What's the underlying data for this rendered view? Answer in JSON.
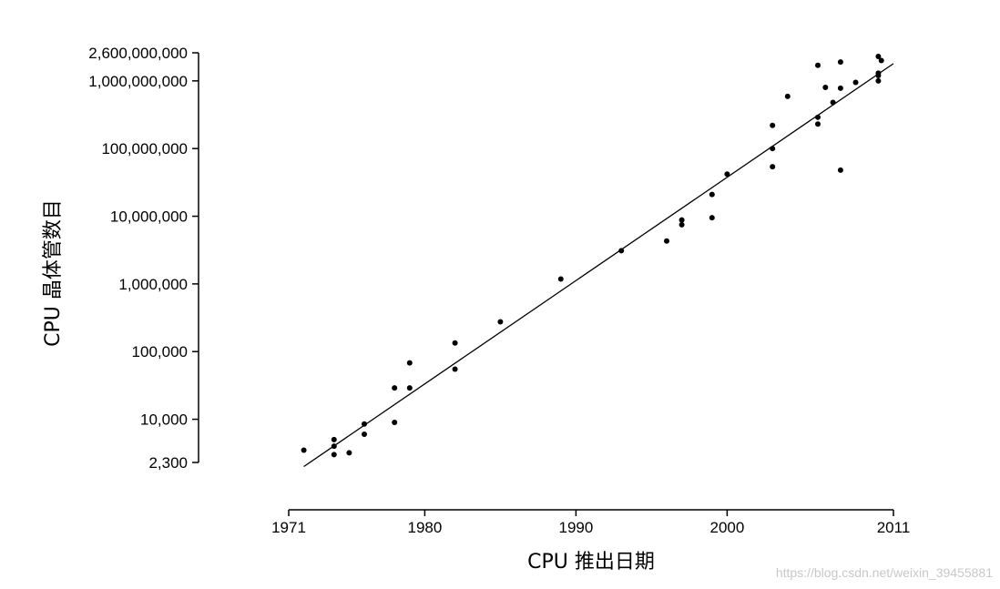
{
  "chart_data": {
    "type": "scatter",
    "xlabel": "CPU 推出日期",
    "ylabel": "CPU 晶体管数目",
    "xscale": "linear",
    "yscale": "log",
    "xlim": [
      1971,
      2011
    ],
    "ylim": [
      2300,
      2600000000
    ],
    "x_ticks": [
      1971,
      1980,
      1990,
      2000,
      2011
    ],
    "x_tick_labels": [
      "1971",
      "1980",
      "1990",
      "2000",
      "2011"
    ],
    "y_ticks": [
      2300,
      10000,
      100000,
      1000000,
      10000000,
      100000000,
      1000000000,
      2600000000
    ],
    "y_tick_labels": [
      "2,300",
      "10,000",
      "100,000",
      "1,000,000",
      "10,000,000",
      "100,000,000",
      "1,000,000,000",
      "2,600,000,000"
    ],
    "grid": false,
    "legend": "none",
    "points": [
      {
        "x": 1972.0,
        "y": 3500
      },
      {
        "x": 1974.0,
        "y": 5000
      },
      {
        "x": 1974.0,
        "y": 4000
      },
      {
        "x": 1974.0,
        "y": 3000
      },
      {
        "x": 1975.0,
        "y": 3200
      },
      {
        "x": 1976.0,
        "y": 8500
      },
      {
        "x": 1976.0,
        "y": 6000
      },
      {
        "x": 1978.0,
        "y": 9000
      },
      {
        "x": 1978.0,
        "y": 29000
      },
      {
        "x": 1979.0,
        "y": 68000
      },
      {
        "x": 1979.0,
        "y": 29000
      },
      {
        "x": 1982.0,
        "y": 134000
      },
      {
        "x": 1982.0,
        "y": 55000
      },
      {
        "x": 1985.0,
        "y": 275000
      },
      {
        "x": 1989.0,
        "y": 1180000
      },
      {
        "x": 1993.0,
        "y": 3100000
      },
      {
        "x": 1996.0,
        "y": 4300000
      },
      {
        "x": 1997.0,
        "y": 7500000
      },
      {
        "x": 1997.0,
        "y": 8800000
      },
      {
        "x": 1999.0,
        "y": 21000000
      },
      {
        "x": 1999.0,
        "y": 9500000
      },
      {
        "x": 2000.0,
        "y": 42000000
      },
      {
        "x": 2003.0,
        "y": 54000000
      },
      {
        "x": 2003.0,
        "y": 100000000
      },
      {
        "x": 2003.0,
        "y": 220000000
      },
      {
        "x": 2004.0,
        "y": 590000000
      },
      {
        "x": 2006.0,
        "y": 230000000
      },
      {
        "x": 2006.0,
        "y": 290000000
      },
      {
        "x": 2006.0,
        "y": 1700000000
      },
      {
        "x": 2006.5,
        "y": 800000000
      },
      {
        "x": 2007.0,
        "y": 480000000
      },
      {
        "x": 2007.5,
        "y": 1900000000
      },
      {
        "x": 2007.5,
        "y": 780000000
      },
      {
        "x": 2007.5,
        "y": 48000000
      },
      {
        "x": 2008.5,
        "y": 950000000
      },
      {
        "x": 2010.0,
        "y": 2300000000
      },
      {
        "x": 2010.0,
        "y": 1300000000
      },
      {
        "x": 2010.0,
        "y": 1200000000
      },
      {
        "x": 2010.0,
        "y": 1000000000
      },
      {
        "x": 2010.2,
        "y": 2000000000
      }
    ],
    "trendline": {
      "x": [
        1972.0,
        2011.0
      ],
      "y": [
        2000,
        1800000000
      ]
    }
  },
  "watermark": "https://blog.csdn.net/weixin_39455881"
}
